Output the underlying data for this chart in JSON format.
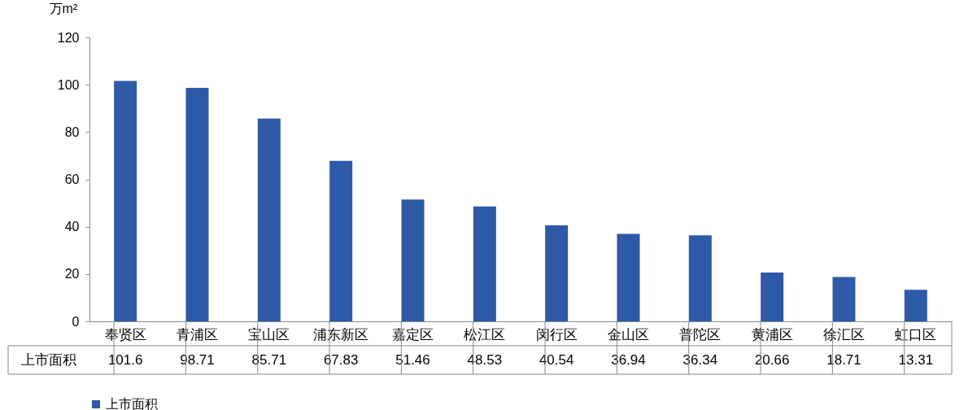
{
  "chart_data": {
    "type": "bar",
    "ylabel": "万m²",
    "categories": [
      "奉贤区",
      "青浦区",
      "宝山区",
      "浦东新区",
      "嘉定区",
      "松江区",
      "闵行区",
      "金山区",
      "普陀区",
      "黄浦区",
      "徐汇区",
      "虹口区"
    ],
    "series": [
      {
        "name": "上市面积",
        "color": "#2e59a7",
        "values": [
          101.6,
          98.71,
          85.71,
          67.83,
          51.46,
          48.53,
          40.54,
          36.94,
          36.34,
          20.66,
          18.71,
          13.31
        ]
      }
    ],
    "ylim": [
      0,
      120
    ],
    "yticks": [
      0,
      20,
      40,
      60,
      80,
      100,
      120
    ],
    "grid": false,
    "legend": "bottom",
    "data_labels": true
  }
}
